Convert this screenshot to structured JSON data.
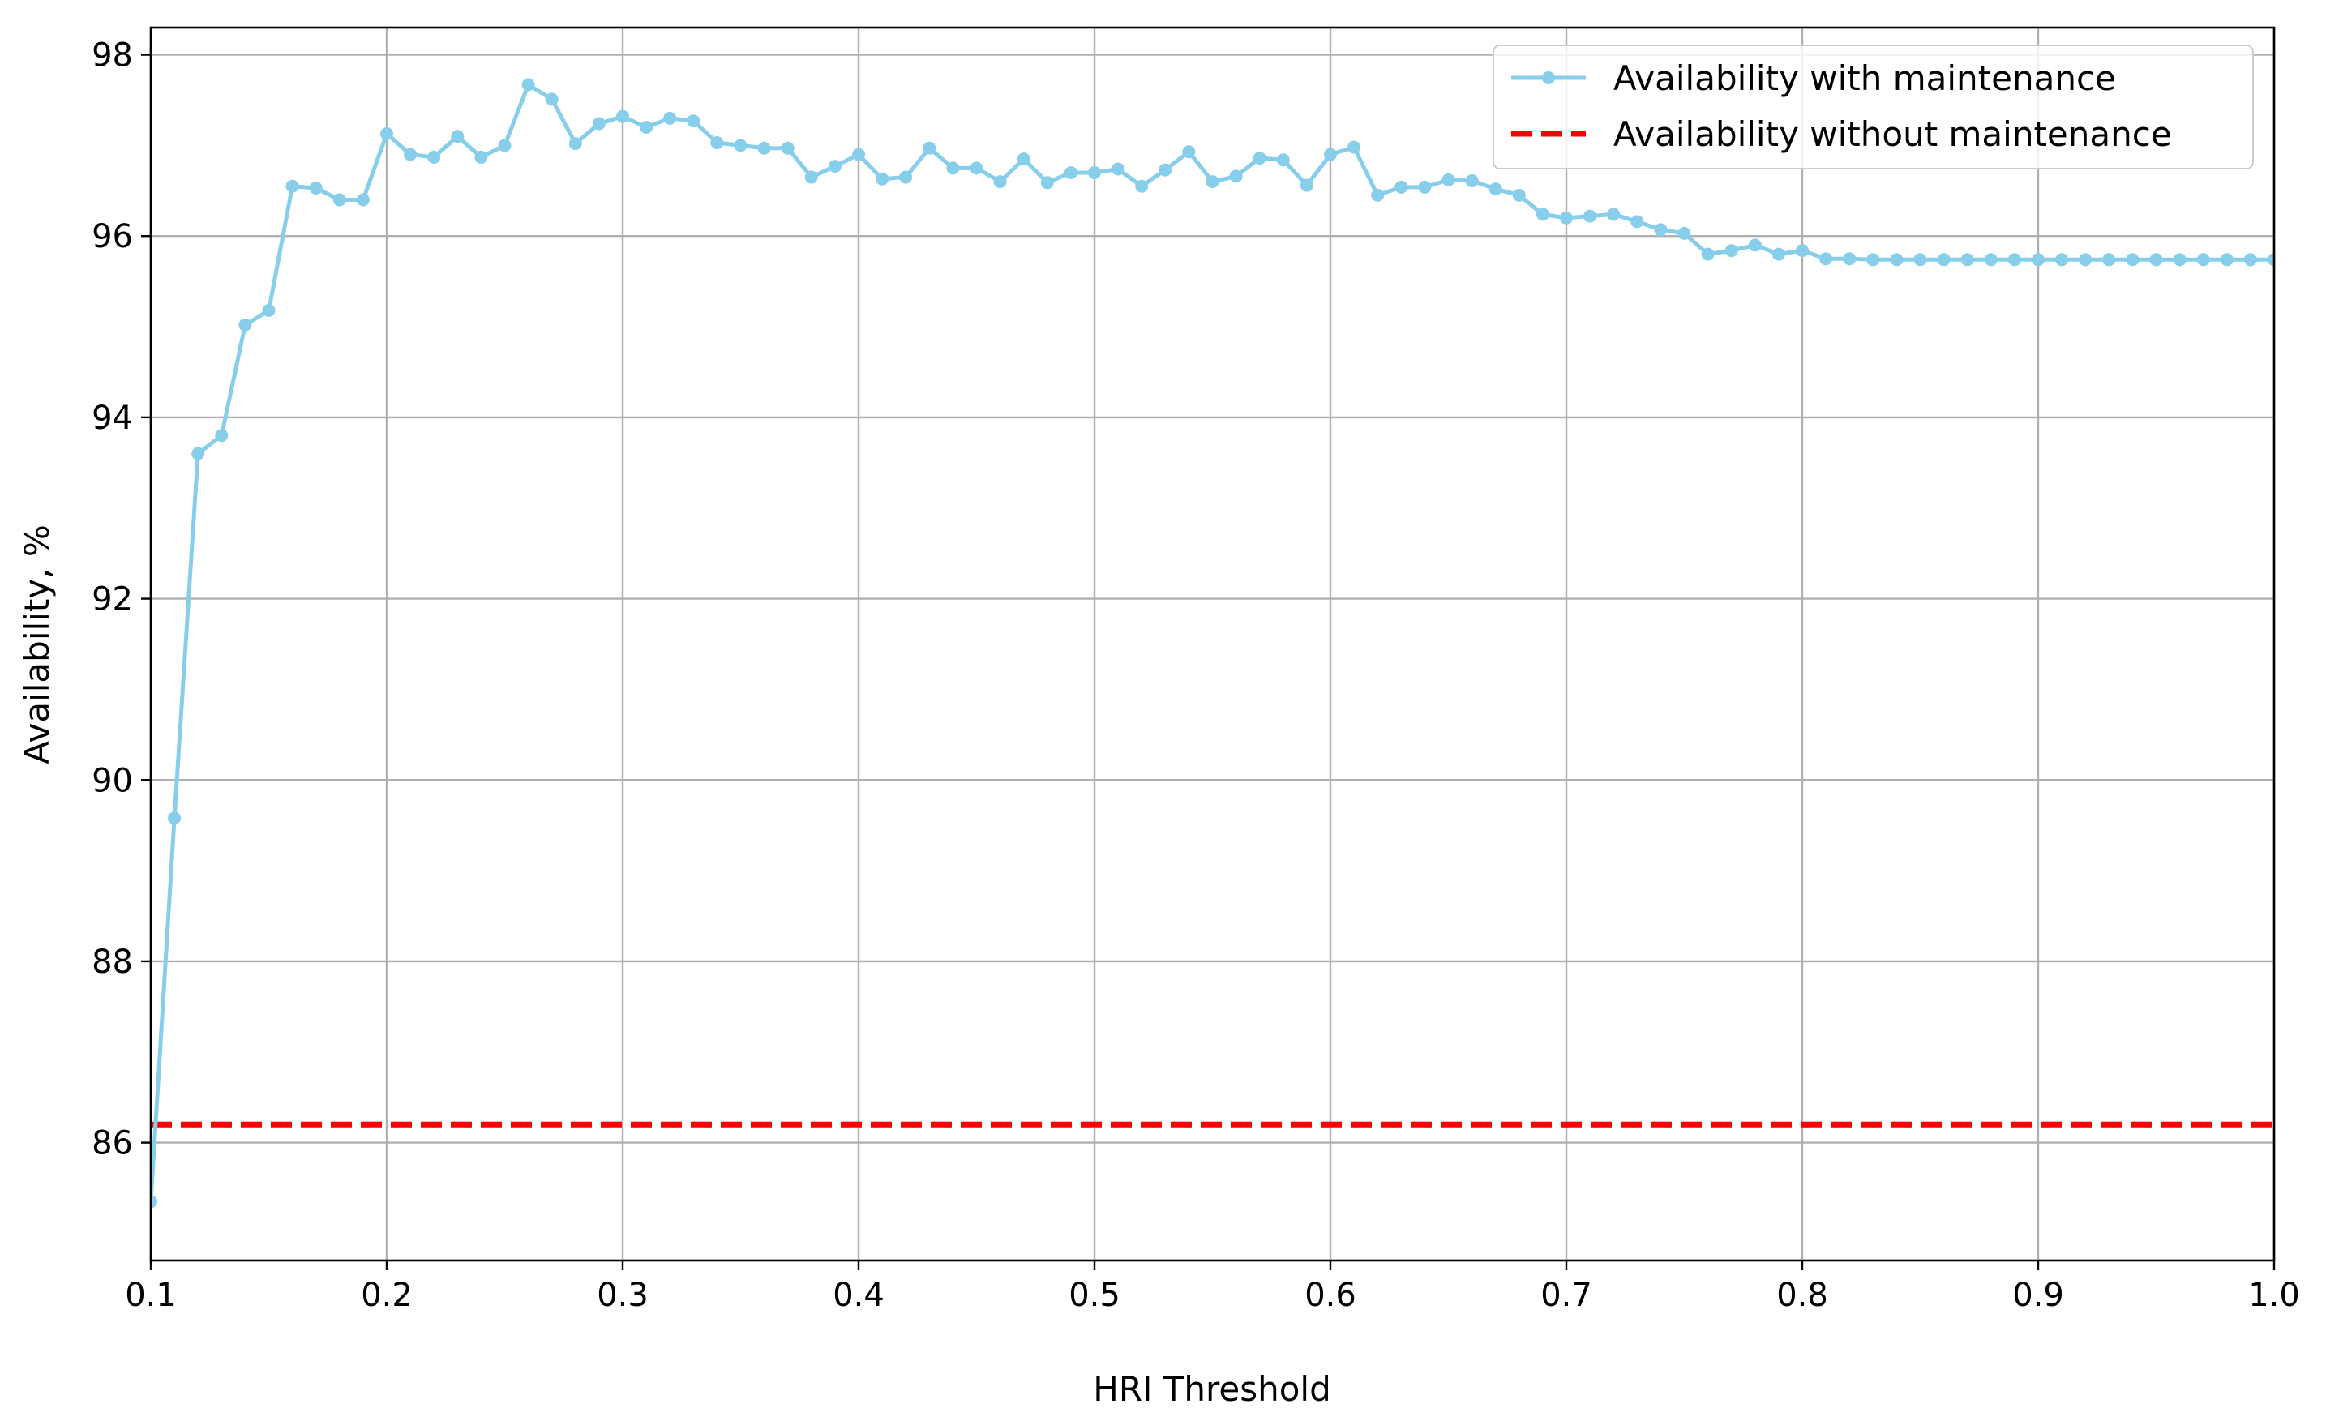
{
  "chart_data": {
    "type": "line",
    "title": "",
    "xlabel": "HRI Threshold",
    "ylabel": "Availability, %",
    "xlim": [
      0.1,
      1.0
    ],
    "ylim": [
      84.7,
      98.3
    ],
    "xticks": [
      "0.1",
      "0.2",
      "0.3",
      "0.4",
      "0.5",
      "0.6",
      "0.7",
      "0.8",
      "0.9",
      "1.0"
    ],
    "yticks": [
      "86",
      "88",
      "90",
      "92",
      "94",
      "96",
      "98"
    ],
    "grid": true,
    "legend_position": "top-right",
    "series": [
      {
        "name": "Availability with maintenance",
        "color": "#87ceeb",
        "style": "solid-with-markers",
        "x": [
          0.1,
          0.11,
          0.12,
          0.13,
          0.14,
          0.15,
          0.16,
          0.17,
          0.18,
          0.19,
          0.2,
          0.21,
          0.22,
          0.23,
          0.24,
          0.25,
          0.26,
          0.27,
          0.28,
          0.29,
          0.3,
          0.31,
          0.32,
          0.33,
          0.34,
          0.35,
          0.36,
          0.37,
          0.38,
          0.39,
          0.4,
          0.41,
          0.42,
          0.43,
          0.44,
          0.45,
          0.46,
          0.47,
          0.48,
          0.49,
          0.5,
          0.51,
          0.52,
          0.53,
          0.54,
          0.55,
          0.56,
          0.57,
          0.58,
          0.59,
          0.6,
          0.61,
          0.62,
          0.63,
          0.64,
          0.65,
          0.66,
          0.67,
          0.68,
          0.69,
          0.7,
          0.71,
          0.72,
          0.73,
          0.74,
          0.75,
          0.76,
          0.77,
          0.78,
          0.79,
          0.8,
          0.81,
          0.82,
          0.83,
          0.84,
          0.85,
          0.86,
          0.87,
          0.88,
          0.89,
          0.9,
          0.91,
          0.92,
          0.93,
          0.94,
          0.95,
          0.96,
          0.97,
          0.98,
          0.99,
          1.0
        ],
        "y": [
          85.35,
          89.58,
          93.6,
          93.8,
          95.02,
          95.18,
          96.55,
          96.53,
          96.4,
          96.4,
          97.13,
          96.9,
          96.87,
          97.1,
          96.87,
          97.0,
          97.67,
          97.51,
          97.02,
          97.24,
          97.32,
          97.2,
          97.3,
          97.27,
          97.03,
          97.0,
          96.97,
          96.97,
          96.65,
          96.77,
          96.9,
          96.63,
          96.65,
          96.97,
          96.75,
          96.75,
          96.6,
          96.85,
          96.59,
          96.7,
          96.7,
          96.74,
          96.55,
          96.73,
          96.93,
          96.6,
          96.66,
          96.86,
          96.84,
          96.56,
          96.9,
          96.98,
          96.45,
          96.54,
          96.54,
          96.62,
          96.61,
          96.52,
          96.45,
          96.24,
          96.2,
          96.22,
          96.24,
          96.16,
          96.07,
          96.03,
          95.8,
          95.84,
          95.9,
          95.8,
          95.84,
          95.75,
          95.75,
          95.74,
          95.74,
          95.74,
          95.74,
          95.74,
          95.74,
          95.74,
          95.74,
          95.74,
          95.74,
          95.74,
          95.74,
          95.74,
          95.74,
          95.74,
          95.74,
          95.74,
          95.74
        ]
      },
      {
        "name": "Availability without maintenance",
        "color": "#ff0000",
        "style": "dashed",
        "x": [
          0.1,
          1.0
        ],
        "y": [
          86.2,
          86.2
        ]
      }
    ]
  }
}
